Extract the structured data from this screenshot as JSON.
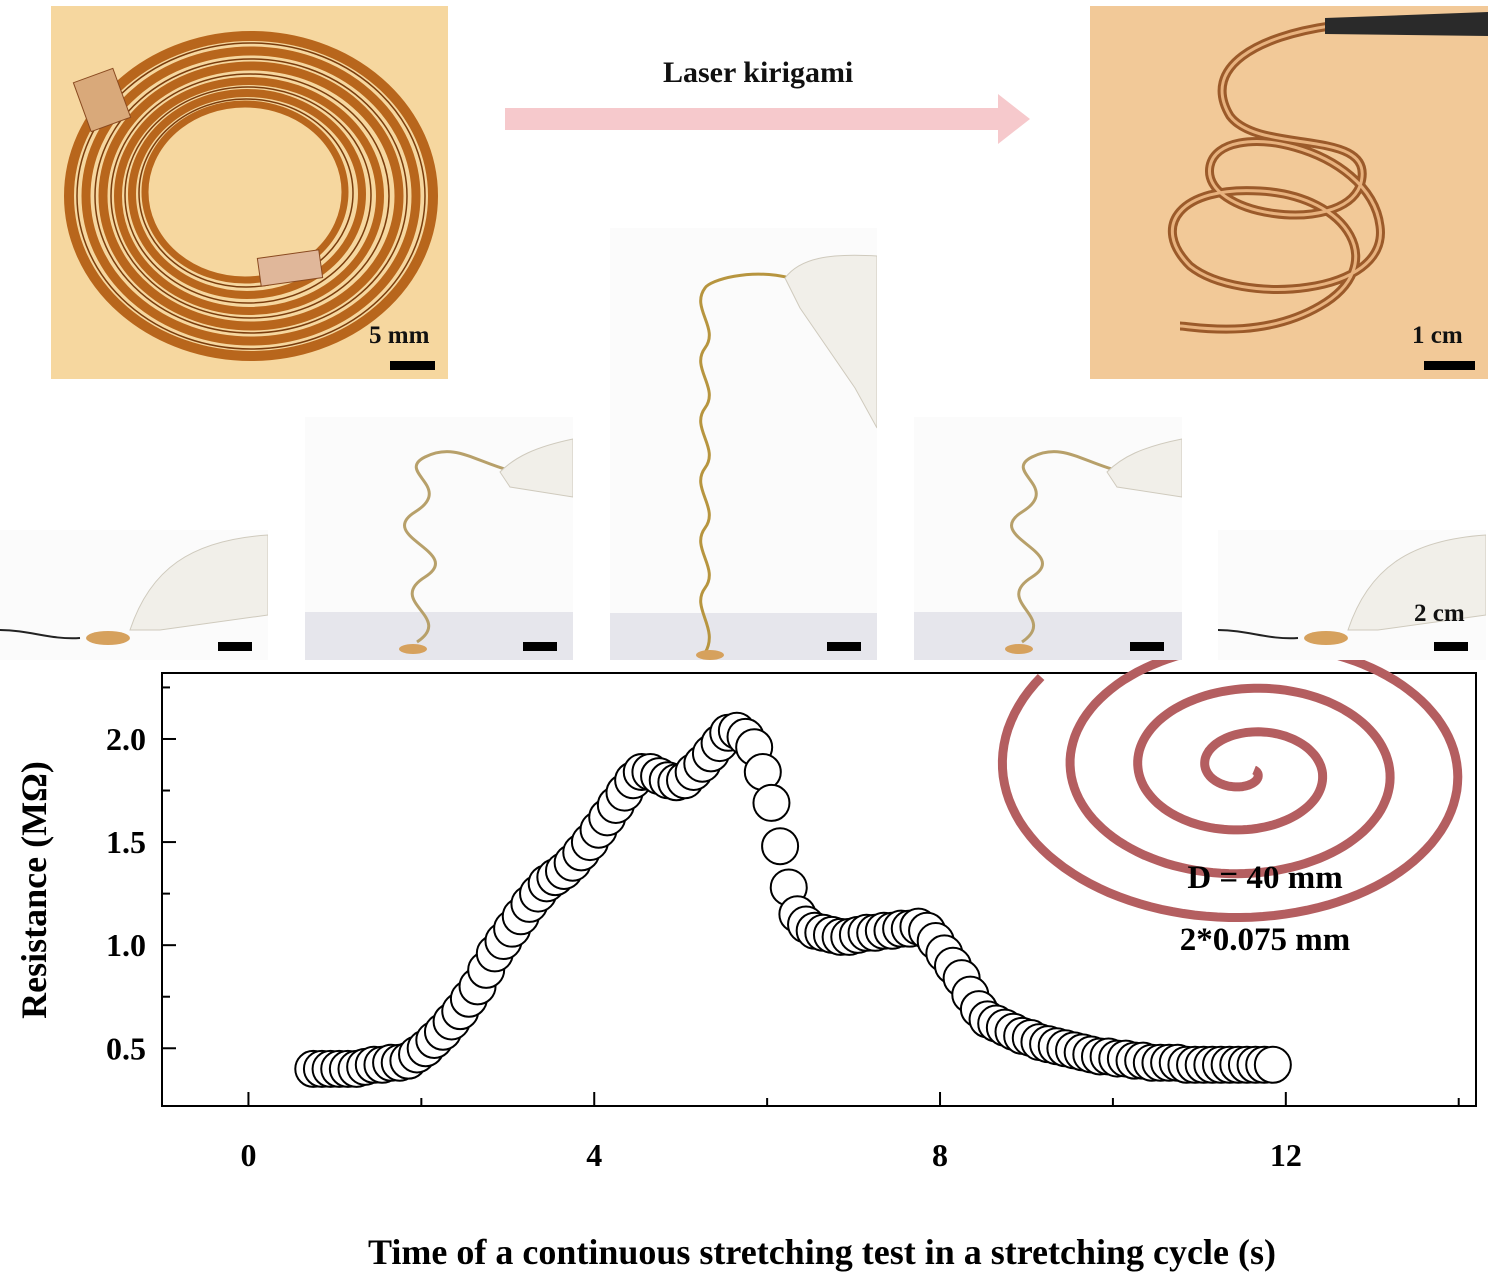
{
  "header": {
    "process_label": "Laser kirigami"
  },
  "photos": {
    "coil": {
      "scale_label": "5 mm"
    },
    "stretched_helix": {
      "scale_label": "1 cm"
    },
    "sequence_scale_label": "2 cm"
  },
  "inset": {
    "diameter_label": "D = 40 mm",
    "width_label": "2*0.075 mm"
  },
  "colors": {
    "arrow": "#f6c9cc",
    "spiral": "#b45e60",
    "photo_background": "#f7d49a"
  },
  "chart_data": {
    "type": "scatter",
    "title": "",
    "xlabel": "Time of a continuous stretching test in a stretching cycle (s)",
    "ylabel": "Resistance (MΩ)",
    "xlim": [
      -1,
      14.2
    ],
    "ylim": [
      0.22,
      2.32
    ],
    "xticks": [
      0,
      4,
      8,
      12
    ],
    "yticks": [
      0.5,
      1.0,
      1.5,
      2.0
    ],
    "xtick_labels": [
      "0",
      "4",
      "8",
      "12"
    ],
    "ytick_labels": [
      "0.5",
      "1.0",
      "1.5",
      "2.0"
    ],
    "grid": false,
    "marker": "open-circle",
    "x": [
      0.75,
      0.85,
      0.95,
      1.05,
      1.15,
      1.25,
      1.35,
      1.45,
      1.55,
      1.65,
      1.75,
      1.85,
      1.95,
      2.05,
      2.15,
      2.25,
      2.35,
      2.45,
      2.55,
      2.65,
      2.75,
      2.85,
      2.95,
      3.05,
      3.15,
      3.25,
      3.35,
      3.45,
      3.55,
      3.65,
      3.75,
      3.85,
      3.95,
      4.05,
      4.15,
      4.25,
      4.35,
      4.45,
      4.55,
      4.65,
      4.75,
      4.85,
      4.95,
      5.05,
      5.15,
      5.25,
      5.35,
      5.45,
      5.55,
      5.65,
      5.75,
      5.85,
      5.95,
      6.05,
      6.15,
      6.25,
      6.35,
      6.45,
      6.55,
      6.65,
      6.75,
      6.85,
      6.95,
      7.05,
      7.15,
      7.25,
      7.35,
      7.45,
      7.55,
      7.65,
      7.75,
      7.85,
      7.95,
      8.05,
      8.15,
      8.25,
      8.35,
      8.45,
      8.55,
      8.65,
      8.75,
      8.85,
      8.95,
      9.05,
      9.15,
      9.25,
      9.35,
      9.45,
      9.55,
      9.65,
      9.75,
      9.85,
      9.95,
      10.05,
      10.15,
      10.25,
      10.35,
      10.45,
      10.55,
      10.65,
      10.75,
      10.85,
      10.95,
      11.05,
      11.15,
      11.25,
      11.35,
      11.45,
      11.55,
      11.65,
      11.75,
      11.85
    ],
    "y": [
      0.4,
      0.4,
      0.4,
      0.4,
      0.4,
      0.4,
      0.41,
      0.42,
      0.42,
      0.43,
      0.43,
      0.44,
      0.47,
      0.5,
      0.54,
      0.58,
      0.63,
      0.68,
      0.74,
      0.8,
      0.88,
      0.96,
      1.02,
      1.08,
      1.14,
      1.2,
      1.25,
      1.3,
      1.33,
      1.36,
      1.4,
      1.45,
      1.5,
      1.56,
      1.62,
      1.68,
      1.74,
      1.8,
      1.84,
      1.84,
      1.82,
      1.8,
      1.79,
      1.8,
      1.84,
      1.88,
      1.93,
      1.98,
      2.03,
      2.04,
      2.01,
      1.96,
      1.84,
      1.69,
      1.48,
      1.28,
      1.15,
      1.1,
      1.07,
      1.06,
      1.05,
      1.04,
      1.04,
      1.05,
      1.06,
      1.06,
      1.07,
      1.07,
      1.08,
      1.08,
      1.09,
      1.07,
      1.02,
      0.96,
      0.9,
      0.84,
      0.76,
      0.69,
      0.64,
      0.62,
      0.6,
      0.58,
      0.56,
      0.55,
      0.53,
      0.52,
      0.51,
      0.5,
      0.49,
      0.48,
      0.47,
      0.46,
      0.46,
      0.45,
      0.45,
      0.44,
      0.44,
      0.43,
      0.43,
      0.43,
      0.43,
      0.42,
      0.42,
      0.42,
      0.42,
      0.42,
      0.42,
      0.42,
      0.42,
      0.42,
      0.42,
      0.42
    ]
  }
}
